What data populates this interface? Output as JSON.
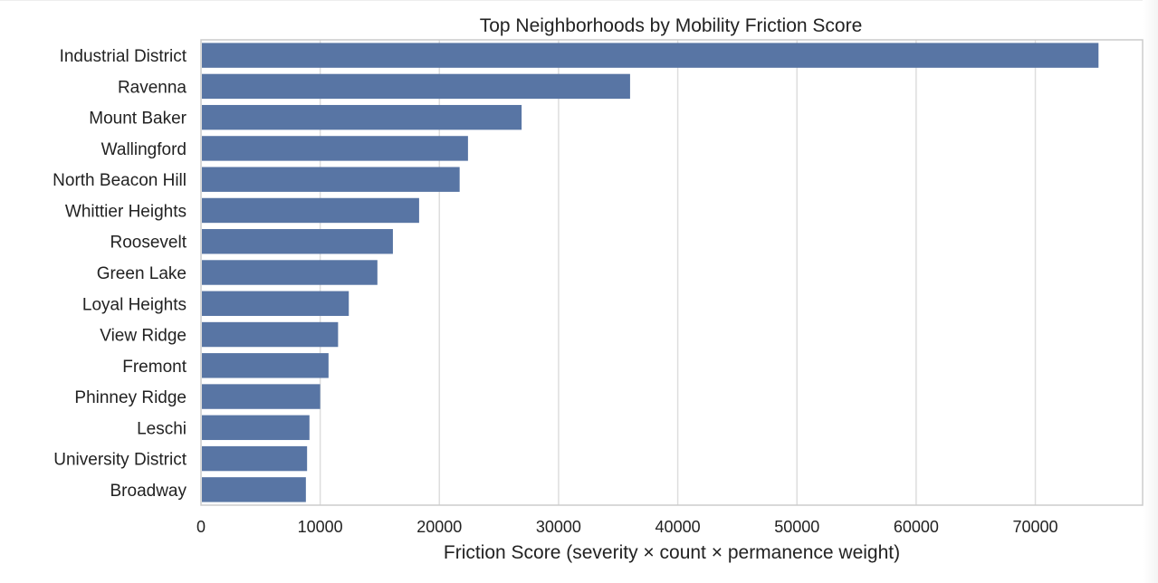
{
  "chart_data": {
    "type": "bar",
    "orientation": "horizontal",
    "title": "Top Neighborhoods by Mobility Friction Score",
    "xlabel": "Friction Score (severity × count × permanence weight)",
    "ylabel": "",
    "xlim": [
      0,
      79000
    ],
    "xticks": [
      0,
      10000,
      20000,
      30000,
      40000,
      50000,
      60000,
      70000
    ],
    "grid": "vertical",
    "bar_color": "#5875a4",
    "categories": [
      "Industrial District",
      "Ravenna",
      "Mount Baker",
      "Wallingford",
      "North Beacon Hill",
      "Whittier Heights",
      "Roosevelt",
      "Green Lake",
      "Loyal Heights",
      "View Ridge",
      "Fremont",
      "Phinney Ridge",
      "Leschi",
      "University District",
      "Broadway"
    ],
    "values": [
      75300,
      36000,
      26900,
      22400,
      21700,
      18300,
      16100,
      14800,
      12400,
      11500,
      10700,
      10000,
      9100,
      8900,
      8800
    ]
  }
}
